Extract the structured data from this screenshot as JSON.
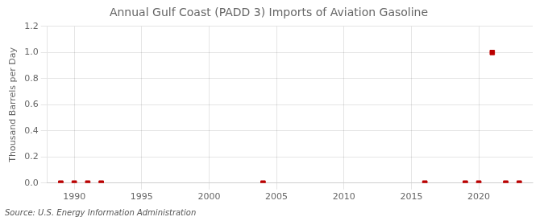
{
  "chart_data": {
    "type": "scatter",
    "title": "Annual Gulf Coast (PADD 3) Imports of Aviation Gasoline",
    "y_label": "Thousand Barrels per Day",
    "annotation": "Source: U.S. Energy Information Administration",
    "x": [
      1989,
      1990,
      1991,
      1992,
      2004,
      2016,
      2019,
      2020,
      2021,
      2022,
      2023
    ],
    "values": [
      0.0,
      0.0,
      0.0,
      0.0,
      0.0,
      0.0,
      0.0,
      0.0,
      1.0,
      0.0,
      0.0
    ],
    "color": "#bb0000",
    "marker": "square",
    "xlim": [
      1988,
      2024
    ],
    "xticks": [
      1990,
      1995,
      2000,
      2005,
      2010,
      2015,
      2020
    ],
    "ylim": [
      0,
      1.2
    ],
    "yticks": [
      {
        "value": 0,
        "label": "0.0"
      },
      0.2,
      0.4,
      0.6,
      0.8,
      {
        "value": 1,
        "label": "1.0"
      },
      1.2
    ],
    "grid": true
  }
}
